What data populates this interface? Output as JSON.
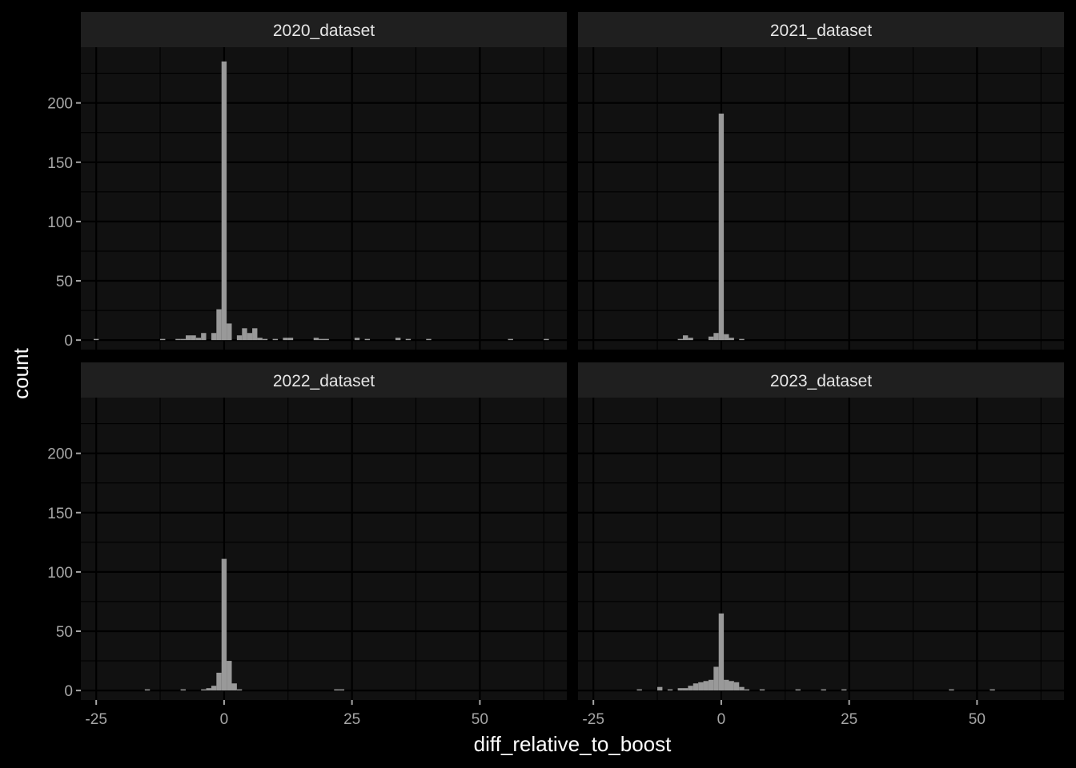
{
  "chart_data": {
    "type": "bar",
    "chart_kind": "faceted histogram",
    "xlabel": "diff_relative_to_boost",
    "ylabel": "count",
    "xlim": [
      -28,
      67
    ],
    "ylim": [
      -8,
      247
    ],
    "bin_width": 1,
    "x_ticks": [
      -25,
      0,
      25,
      50
    ],
    "x_tick_labels": [
      "-25",
      "0",
      "25",
      "50"
    ],
    "y_ticks": [
      0,
      50,
      100,
      150,
      200
    ],
    "y_tick_labels": [
      "0",
      "50",
      "100",
      "150",
      "200"
    ],
    "grid": "on",
    "theme": "dark",
    "colors": {
      "background": "#000000",
      "panel": "#111111",
      "strip": "#1f1f1f",
      "bar": "#999999",
      "grid": "#000000"
    },
    "panels": [
      {
        "title": "2020_dataset",
        "x": [
          -25,
          -12,
          -9,
          -8,
          -7,
          -6,
          -5,
          -4,
          -2,
          -1,
          0,
          1,
          3,
          4,
          5,
          6,
          7,
          8,
          10,
          12,
          13,
          18,
          19,
          20,
          26,
          28,
          34,
          36,
          40,
          56,
          63
        ],
        "values": [
          1,
          1,
          1,
          1,
          4,
          4,
          2,
          6,
          6,
          26,
          235,
          14,
          4,
          10,
          6,
          10,
          2,
          1,
          1,
          2,
          2,
          2,
          1,
          1,
          2,
          1,
          2,
          1,
          1,
          1,
          1
        ]
      },
      {
        "title": "2021_dataset",
        "x": [
          -8,
          -7,
          -6,
          -2,
          -1,
          0,
          1,
          2,
          4
        ],
        "values": [
          1,
          4,
          2,
          3,
          6,
          191,
          5,
          2,
          1
        ]
      },
      {
        "title": "2022_dataset",
        "x": [
          -15,
          -8,
          -4,
          -3,
          -2,
          -1,
          0,
          1,
          2,
          3,
          22,
          23
        ],
        "values": [
          1,
          1,
          1,
          2,
          4,
          15,
          111,
          25,
          6,
          1,
          1,
          1
        ]
      },
      {
        "title": "2023_dataset",
        "x": [
          -16,
          -12,
          -10,
          -8,
          -7,
          -6,
          -5,
          -4,
          -3,
          -2,
          -1,
          0,
          1,
          2,
          3,
          4,
          5,
          8,
          15,
          20,
          24,
          45,
          53
        ],
        "values": [
          1,
          3,
          1,
          2,
          2,
          4,
          6,
          7,
          8,
          9,
          20,
          65,
          9,
          8,
          7,
          3,
          1,
          1,
          1,
          1,
          1,
          1,
          1
        ]
      }
    ]
  }
}
